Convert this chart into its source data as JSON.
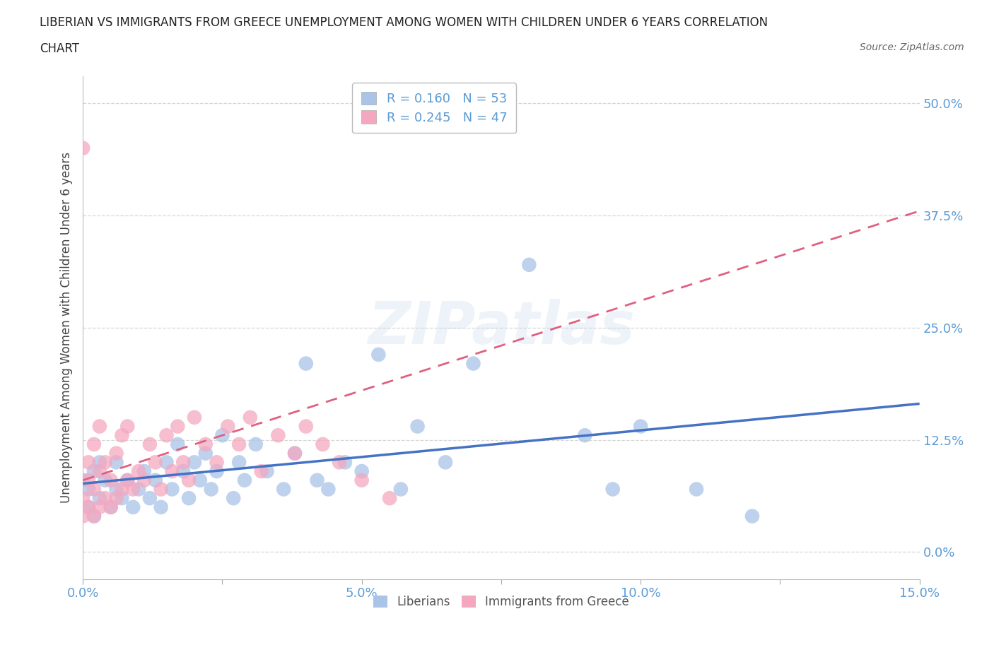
{
  "title_line1": "LIBERIAN VS IMMIGRANTS FROM GREECE UNEMPLOYMENT AMONG WOMEN WITH CHILDREN UNDER 6 YEARS CORRELATION",
  "title_line2": "CHART",
  "source_text": "Source: ZipAtlas.com",
  "ylabel": "Unemployment Among Women with Children Under 6 years",
  "xlim": [
    0.0,
    0.15
  ],
  "ylim": [
    -0.03,
    0.53
  ],
  "xticks": [
    0.0,
    0.05,
    0.1,
    0.15
  ],
  "xtick_labels": [
    "0.0%",
    "5.0%",
    "10.0%",
    "15.0%"
  ],
  "yticks": [
    0.0,
    0.125,
    0.25,
    0.375,
    0.5
  ],
  "ytick_labels": [
    "0.0%",
    "12.5%",
    "25.0%",
    "37.5%",
    "50.0%"
  ],
  "liberians_color": "#aac4e8",
  "greece_color": "#f4a8c0",
  "liberian_line_color": "#4472c4",
  "greece_line_color": "#e06080",
  "R_liberian": 0.16,
  "N_liberian": 53,
  "R_greece": 0.245,
  "N_greece": 47,
  "watermark": "ZIPatlas",
  "tick_color": "#5b9bd5",
  "legend_label_color": "#5b9bd5",
  "liberian_x": [
    0.0,
    0.001,
    0.001,
    0.002,
    0.002,
    0.003,
    0.003,
    0.004,
    0.005,
    0.006,
    0.006,
    0.007,
    0.008,
    0.009,
    0.01,
    0.011,
    0.012,
    0.013,
    0.014,
    0.015,
    0.016,
    0.017,
    0.018,
    0.019,
    0.02,
    0.021,
    0.022,
    0.023,
    0.024,
    0.025,
    0.027,
    0.028,
    0.029,
    0.031,
    0.033,
    0.036,
    0.038,
    0.04,
    0.042,
    0.044,
    0.047,
    0.05,
    0.053,
    0.057,
    0.06,
    0.065,
    0.07,
    0.08,
    0.09,
    0.095,
    0.1,
    0.11,
    0.12
  ],
  "liberian_y": [
    0.08,
    0.05,
    0.07,
    0.04,
    0.09,
    0.06,
    0.1,
    0.08,
    0.05,
    0.07,
    0.1,
    0.06,
    0.08,
    0.05,
    0.07,
    0.09,
    0.06,
    0.08,
    0.05,
    0.1,
    0.07,
    0.12,
    0.09,
    0.06,
    0.1,
    0.08,
    0.11,
    0.07,
    0.09,
    0.13,
    0.06,
    0.1,
    0.08,
    0.12,
    0.09,
    0.07,
    0.11,
    0.21,
    0.08,
    0.07,
    0.1,
    0.09,
    0.22,
    0.07,
    0.14,
    0.1,
    0.21,
    0.32,
    0.13,
    0.07,
    0.14,
    0.07,
    0.04
  ],
  "greece_x": [
    0.0,
    0.0,
    0.0,
    0.001,
    0.001,
    0.001,
    0.002,
    0.002,
    0.002,
    0.003,
    0.003,
    0.003,
    0.004,
    0.004,
    0.005,
    0.005,
    0.006,
    0.006,
    0.007,
    0.007,
    0.008,
    0.008,
    0.009,
    0.01,
    0.011,
    0.012,
    0.013,
    0.014,
    0.015,
    0.016,
    0.017,
    0.018,
    0.019,
    0.02,
    0.022,
    0.024,
    0.026,
    0.028,
    0.03,
    0.032,
    0.035,
    0.038,
    0.04,
    0.043,
    0.046,
    0.05,
    0.055
  ],
  "greece_y": [
    0.04,
    0.06,
    0.45,
    0.05,
    0.08,
    0.1,
    0.04,
    0.07,
    0.12,
    0.05,
    0.09,
    0.14,
    0.06,
    0.1,
    0.05,
    0.08,
    0.06,
    0.11,
    0.07,
    0.13,
    0.08,
    0.14,
    0.07,
    0.09,
    0.08,
    0.12,
    0.1,
    0.07,
    0.13,
    0.09,
    0.14,
    0.1,
    0.08,
    0.15,
    0.12,
    0.1,
    0.14,
    0.12,
    0.15,
    0.09,
    0.13,
    0.11,
    0.14,
    0.12,
    0.1,
    0.08,
    0.06
  ]
}
